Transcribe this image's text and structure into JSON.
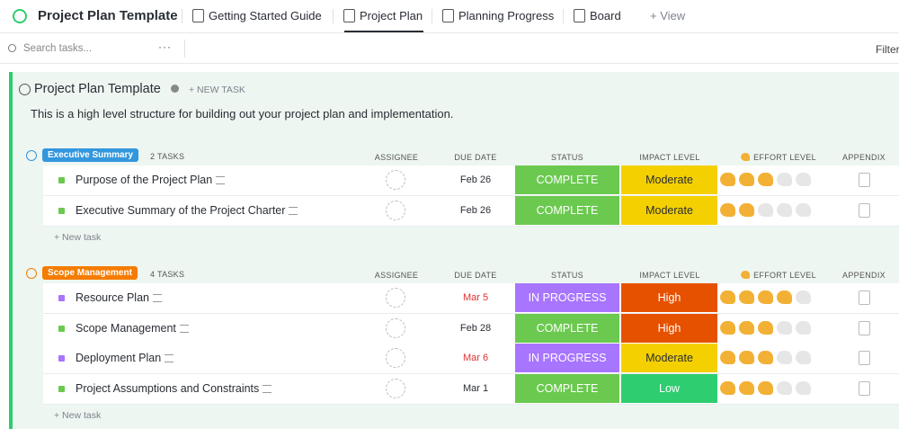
{
  "header": {
    "title": "Project Plan Template",
    "tabs": [
      "Getting Started Guide",
      "Project Plan",
      "Planning Progress",
      "Board"
    ],
    "active_tab": 1,
    "add_view": "+ View"
  },
  "toolbar": {
    "search": "Search tasks...",
    "filter": "Filter"
  },
  "list": {
    "title": "Project Plan Template",
    "new_task": "+ NEW TASK",
    "description": "This is a high level structure for building out your project plan and implementation.",
    "status_colors": {
      "COMPLETE": "#6bc950",
      "IN PROGRESS": "#a875ff"
    },
    "impact_colors": {
      "Moderate": "#f5d000",
      "High": "#e65100",
      "Low": "#2ecd6f"
    },
    "effort_max": 5,
    "groups": [
      {
        "name": "Executive Summary",
        "color": "#3397dd",
        "count": "2 TASKS",
        "columns": [
          "ASSIGNEE",
          "DUE DATE",
          "STATUS",
          "IMPACT LEVEL",
          "EFFORT LEVEL",
          "APPENDIX"
        ],
        "new_task": "+ New task",
        "tasks": [
          {
            "name": "Purpose of the Project Plan",
            "due": "Feb 26",
            "overdue": false,
            "status": "COMPLETE",
            "impact": "Moderate",
            "effort": 3
          },
          {
            "name": "Executive Summary of the Project Charter",
            "due": "Feb 26",
            "overdue": false,
            "status": "COMPLETE",
            "impact": "Moderate",
            "effort": 2
          }
        ]
      },
      {
        "name": "Scope Management",
        "color": "#f57c01",
        "count": "4 TASKS",
        "columns": [
          "ASSIGNEE",
          "DUE DATE",
          "STATUS",
          "IMPACT LEVEL",
          "EFFORT LEVEL",
          "APPENDIX"
        ],
        "new_task": "+ New task",
        "tasks": [
          {
            "name": "Resource Plan",
            "due": "Mar 5",
            "overdue": true,
            "status": "IN PROGRESS",
            "impact": "High",
            "effort": 4
          },
          {
            "name": "Scope Management",
            "due": "Feb 28",
            "overdue": false,
            "status": "COMPLETE",
            "impact": "High",
            "effort": 3
          },
          {
            "name": "Deployment Plan",
            "due": "Mar 6",
            "overdue": true,
            "status": "IN PROGRESS",
            "impact": "Moderate",
            "effort": 3
          },
          {
            "name": "Project Assumptions and Constraints",
            "due": "Mar 1",
            "overdue": false,
            "status": "COMPLETE",
            "impact": "Low",
            "effort": 3
          }
        ]
      }
    ]
  }
}
